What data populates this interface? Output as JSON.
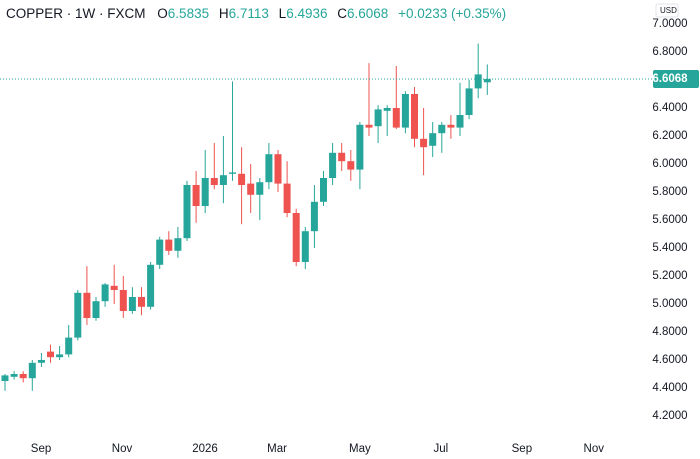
{
  "chart_data": {
    "type": "candlestick",
    "title": "COPPER · 1W · FXCM",
    "ohlc_labels": [
      "O",
      "H",
      "L",
      "C"
    ],
    "change_label": "+0.0233 (+0.35%)",
    "currency": "USD",
    "up_color": "#26a69a",
    "down_color": "#ef5350",
    "last_price_line": true,
    "open": [
      4.45,
      4.48,
      4.5,
      4.47,
      4.58,
      4.66,
      4.62,
      4.64,
      4.76,
      5.08,
      4.9,
      5.02,
      5.13,
      5.1,
      4.95,
      5.05,
      4.98,
      5.28,
      5.46,
      5.38,
      5.47,
      5.85,
      5.7,
      5.9,
      5.85,
      5.93,
      5.93,
      5.86,
      5.78,
      5.87,
      6.07,
      5.86,
      5.65,
      5.3,
      5.52,
      5.73,
      5.9,
      6.08,
      6.02,
      5.96,
      6.28,
      6.27,
      6.38,
      6.4,
      6.26,
      6.5,
      6.18,
      6.13,
      6.22,
      6.28,
      6.26,
      6.35,
      6.54,
      6.5835
    ],
    "high": [
      4.5,
      4.52,
      4.52,
      4.6,
      4.65,
      4.71,
      4.7,
      4.85,
      5.1,
      5.27,
      5.05,
      5.15,
      5.28,
      5.2,
      5.12,
      5.12,
      5.3,
      5.48,
      5.52,
      5.55,
      5.88,
      5.95,
      6.1,
      6.15,
      6.2,
      6.59,
      6.12,
      6.0,
      5.9,
      6.15,
      6.1,
      6.02,
      5.68,
      5.55,
      5.85,
      5.95,
      6.15,
      6.15,
      6.1,
      6.3,
      6.72,
      6.42,
      6.42,
      6.7,
      6.52,
      6.55,
      6.4,
      6.3,
      6.3,
      6.35,
      6.58,
      6.6,
      6.86,
      6.7113
    ],
    "low": [
      4.38,
      4.46,
      4.44,
      4.38,
      4.55,
      4.58,
      4.6,
      4.62,
      4.74,
      4.85,
      4.88,
      4.98,
      5.0,
      4.9,
      4.93,
      4.92,
      4.96,
      5.25,
      5.35,
      5.33,
      5.45,
      5.58,
      5.65,
      5.82,
      5.72,
      5.88,
      5.57,
      5.65,
      5.6,
      5.82,
      5.8,
      5.62,
      5.27,
      5.25,
      5.4,
      5.7,
      5.85,
      5.95,
      5.88,
      5.82,
      6.2,
      6.15,
      6.2,
      6.25,
      6.22,
      6.12,
      5.92,
      6.05,
      6.08,
      6.18,
      6.2,
      6.32,
      6.47,
      6.4936
    ],
    "close": [
      4.49,
      4.5,
      4.47,
      4.58,
      4.6,
      4.62,
      4.64,
      4.76,
      5.08,
      4.9,
      5.02,
      5.14,
      5.1,
      4.95,
      5.05,
      4.98,
      5.28,
      5.46,
      5.38,
      5.47,
      5.85,
      5.7,
      5.9,
      5.85,
      5.92,
      5.94,
      5.85,
      5.78,
      5.87,
      6.07,
      5.86,
      5.65,
      5.3,
      5.52,
      5.73,
      5.9,
      6.08,
      6.02,
      5.96,
      6.28,
      6.26,
      6.39,
      6.4,
      6.26,
      6.5,
      6.18,
      6.12,
      6.22,
      6.28,
      6.26,
      6.35,
      6.54,
      6.64,
      6.6068
    ],
    "xlim": [
      -0.55,
      71.1
    ],
    "xticks": [
      {
        "value": 3.96,
        "label": "Sep"
      },
      {
        "value": 12.86,
        "label": "Nov"
      },
      {
        "value": 21.98,
        "label": "2026"
      },
      {
        "value": 29.9,
        "label": "Mar"
      },
      {
        "value": 39.0,
        "label": "May"
      },
      {
        "value": 47.9,
        "label": "Jul"
      },
      {
        "value": 56.8,
        "label": "Sep"
      },
      {
        "value": 64.7,
        "label": "Nov"
      }
    ],
    "ylim": [
      4.1,
      7.1714
    ],
    "yticks": [
      {
        "value": 4.2,
        "label": "4.2000"
      },
      {
        "value": 4.4,
        "label": "4.4000"
      },
      {
        "value": 4.6,
        "label": "4.6000"
      },
      {
        "value": 4.8,
        "label": "4.8000"
      },
      {
        "value": 5.0,
        "label": "5.0000"
      },
      {
        "value": 5.2,
        "label": "5.2000"
      },
      {
        "value": 5.4,
        "label": "5.4000"
      },
      {
        "value": 5.6,
        "label": "5.6000"
      },
      {
        "value": 5.8,
        "label": "5.8000"
      },
      {
        "value": 6.0,
        "label": "6.0000"
      },
      {
        "value": 6.2,
        "label": "6.2000"
      },
      {
        "value": 6.4,
        "label": "6.4000"
      },
      {
        "value": 6.8,
        "label": "6.8000"
      },
      {
        "value": 7.0,
        "label": "7.0000"
      }
    ]
  }
}
